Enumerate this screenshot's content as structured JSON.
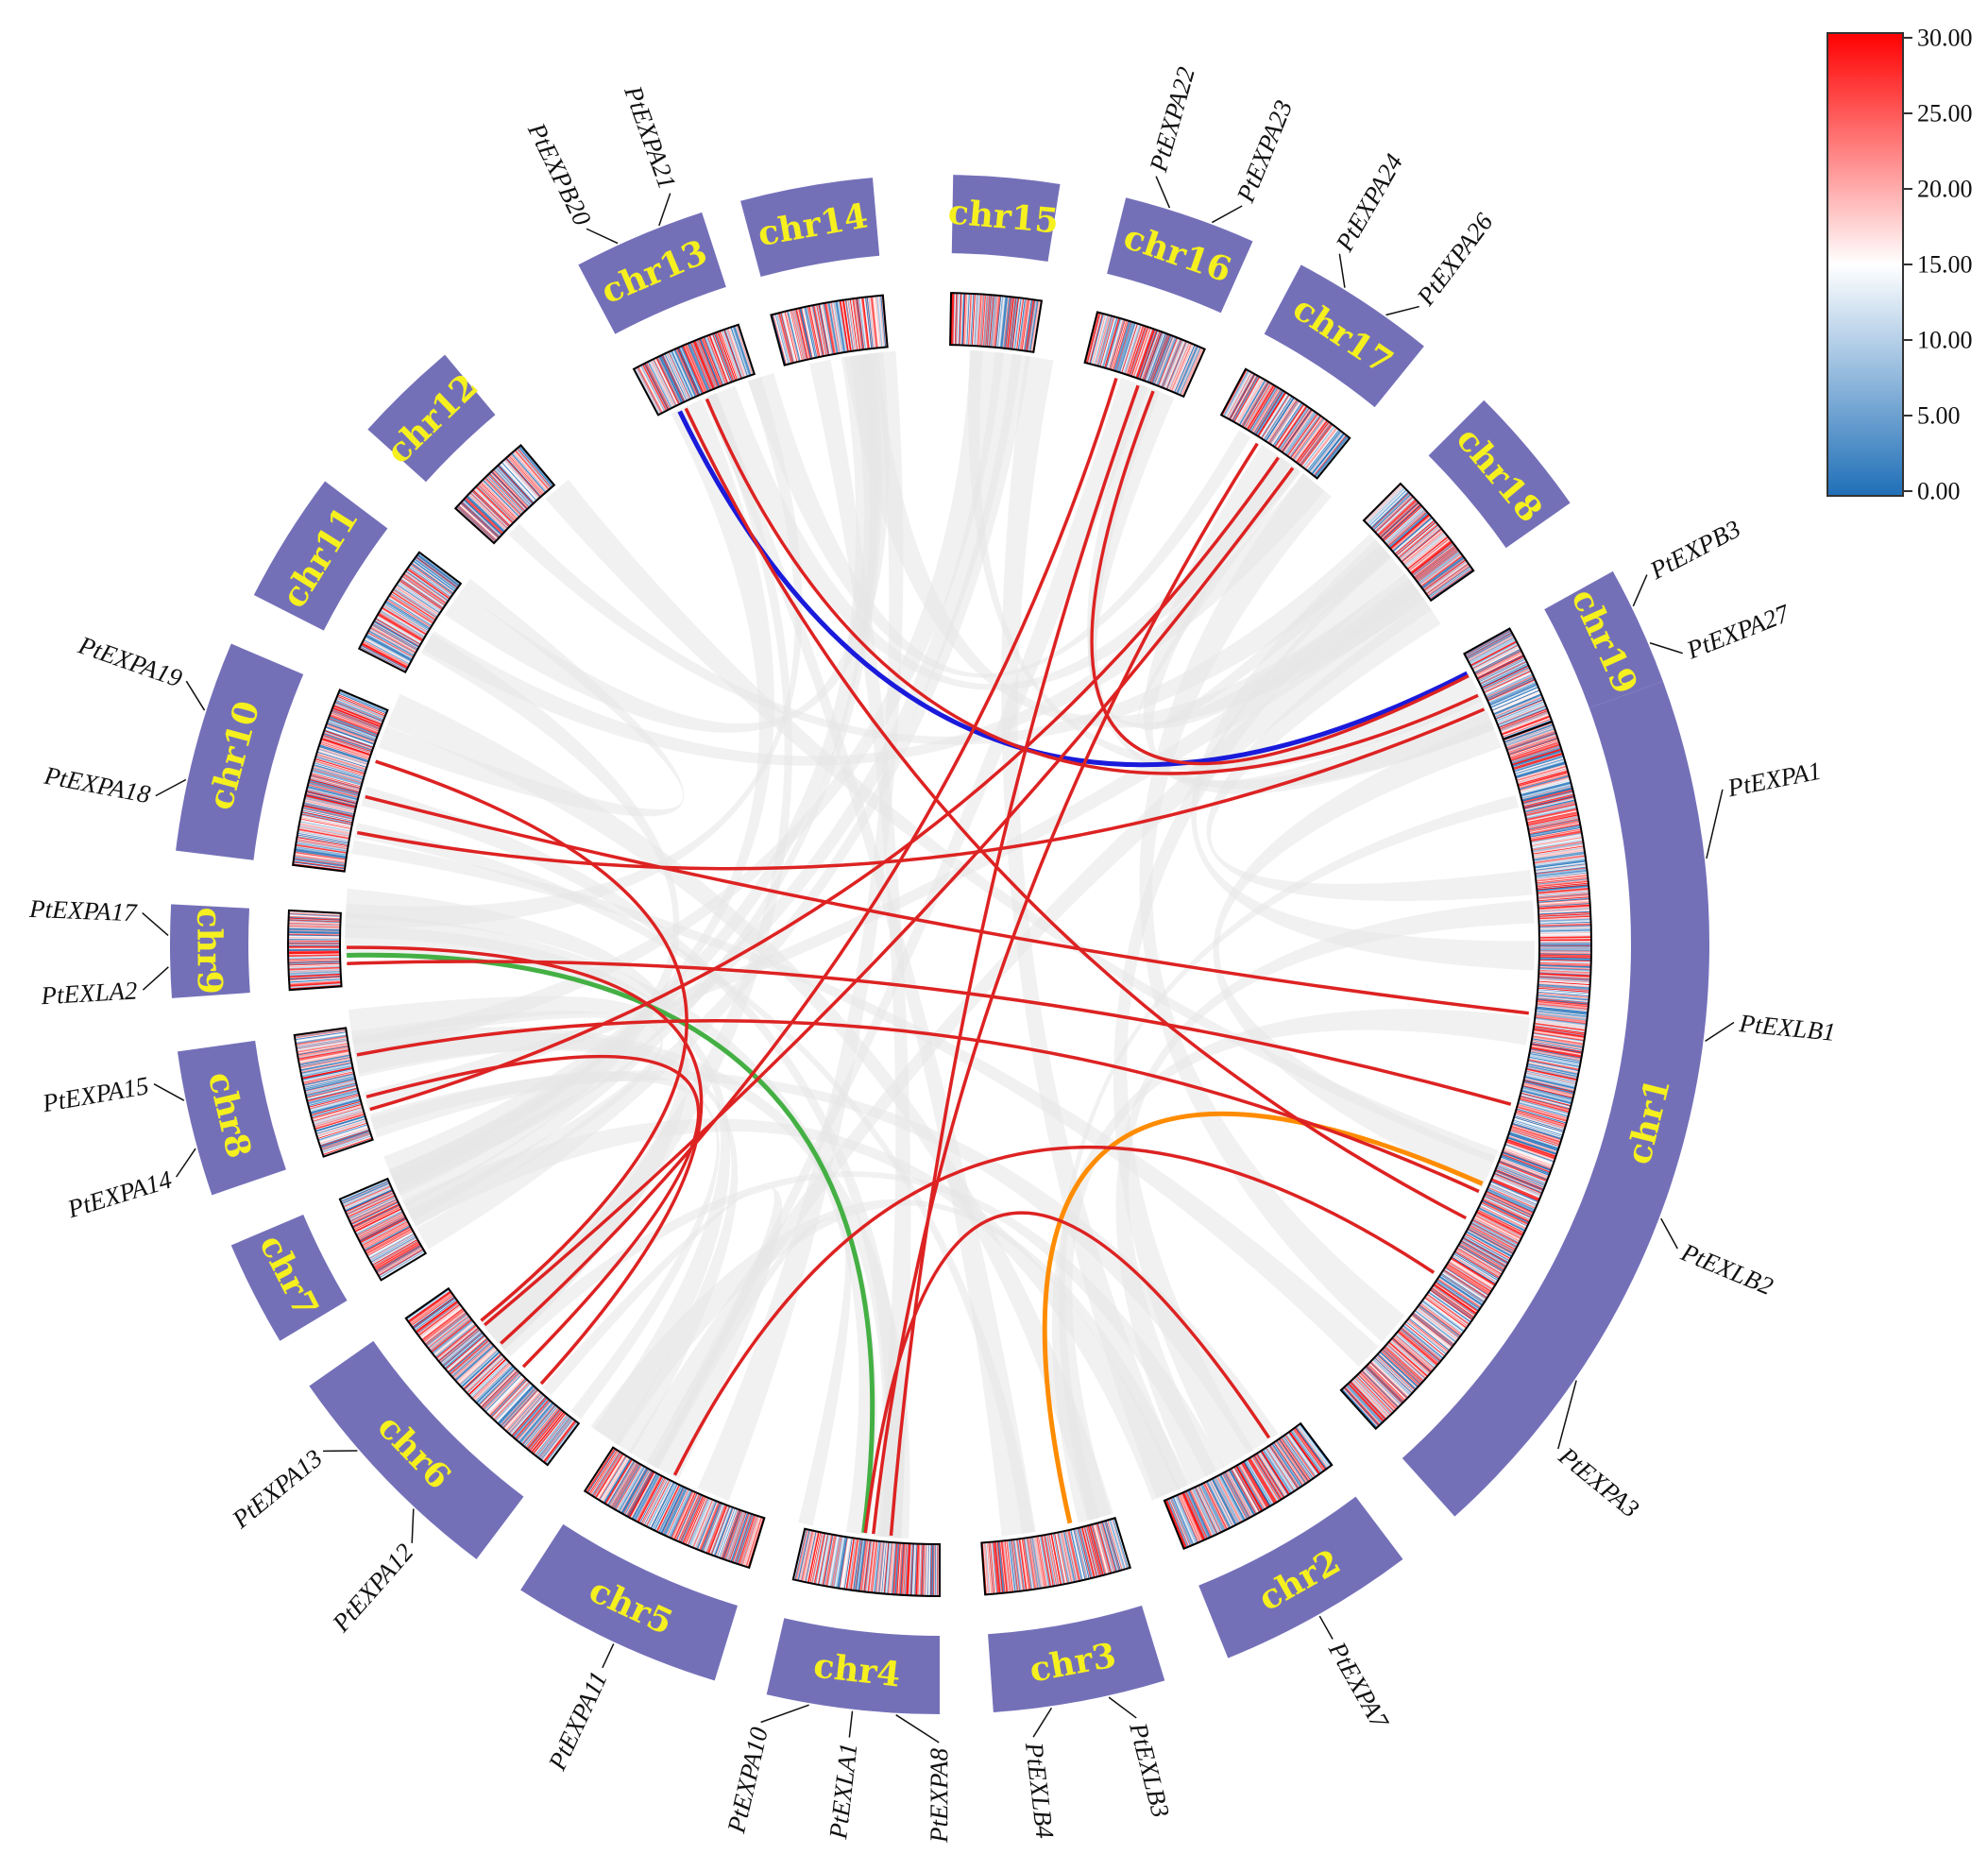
{
  "diagram": {
    "type": "circos",
    "description_free": true,
    "chromosomes": [
      {
        "id": "chr1",
        "label": "chr1"
      },
      {
        "id": "chr2",
        "label": "chr2"
      },
      {
        "id": "chr3",
        "label": "chr3"
      },
      {
        "id": "chr4",
        "label": "chr4"
      },
      {
        "id": "chr5",
        "label": "chr5"
      },
      {
        "id": "chr6",
        "label": "chr6"
      },
      {
        "id": "chr7",
        "label": "chr7"
      },
      {
        "id": "chr8",
        "label": "chr8"
      },
      {
        "id": "chr9",
        "label": "chr9"
      },
      {
        "id": "chr10",
        "label": "chr10"
      },
      {
        "id": "chr11",
        "label": "chr11"
      },
      {
        "id": "chr12",
        "label": "chr12"
      },
      {
        "id": "chr13",
        "label": "chr13"
      },
      {
        "id": "chr14",
        "label": "chr14"
      },
      {
        "id": "chr15",
        "label": "chr15"
      },
      {
        "id": "chr16",
        "label": "chr16"
      },
      {
        "id": "chr17",
        "label": "chr17"
      },
      {
        "id": "chr18",
        "label": "chr18"
      },
      {
        "id": "chr19",
        "label": "chr19"
      }
    ],
    "genes": [
      {
        "name": "PtEXPA1",
        "chr": "chr1"
      },
      {
        "name": "PtEXLB1",
        "chr": "chr1"
      },
      {
        "name": "PtEXLB2",
        "chr": "chr1"
      },
      {
        "name": "PtEXPA3",
        "chr": "chr1"
      },
      {
        "name": "PtEXPA7",
        "chr": "chr2"
      },
      {
        "name": "PtEXLB3",
        "chr": "chr3"
      },
      {
        "name": "PtEXLB4",
        "chr": "chr3"
      },
      {
        "name": "PtEXPA8",
        "chr": "chr4"
      },
      {
        "name": "PtEXLA1",
        "chr": "chr4"
      },
      {
        "name": "PtEXPA10",
        "chr": "chr4"
      },
      {
        "name": "PtEXPA11",
        "chr": "chr5"
      },
      {
        "name": "PtEXPA12",
        "chr": "chr6"
      },
      {
        "name": "PtEXPA13",
        "chr": "chr6"
      },
      {
        "name": "PtEXPA14",
        "chr": "chr8"
      },
      {
        "name": "PtEXPA15",
        "chr": "chr8"
      },
      {
        "name": "PtEXLA2",
        "chr": "chr9"
      },
      {
        "name": "PtEXPA17",
        "chr": "chr9"
      },
      {
        "name": "PtEXPA18",
        "chr": "chr10"
      },
      {
        "name": "PtEXPA19",
        "chr": "chr10"
      },
      {
        "name": "PtEXPB20",
        "chr": "chr13"
      },
      {
        "name": "PtEXPA21",
        "chr": "chr13"
      },
      {
        "name": "PtEXPA22",
        "chr": "chr16"
      },
      {
        "name": "PtEXPA23",
        "chr": "chr16"
      },
      {
        "name": "PtEXPA24",
        "chr": "chr17"
      },
      {
        "name": "PtEXPA26",
        "chr": "chr17"
      },
      {
        "name": "PtEXPB3",
        "chr": "chr19"
      },
      {
        "name": "PtEXPA27",
        "chr": "chr19"
      }
    ],
    "links": [
      {
        "from": "chr13",
        "to": "chr19",
        "color": "#1a1adb"
      },
      {
        "from": "chr9",
        "to": "chr4",
        "color": "#44b044"
      },
      {
        "from": "chr1",
        "to": "chr3",
        "color": "#ff8c00"
      },
      {
        "from": "chr13",
        "to": "chr1",
        "color": "#dd2222"
      },
      {
        "from": "chr13",
        "to": "chr19",
        "color": "#dd2222"
      },
      {
        "from": "chr16",
        "to": "chr19",
        "color": "#dd2222"
      },
      {
        "from": "chr16",
        "to": "chr6",
        "color": "#dd2222"
      },
      {
        "from": "chr16",
        "to": "chr4",
        "color": "#dd2222"
      },
      {
        "from": "chr17",
        "to": "chr6",
        "color": "#dd2222"
      },
      {
        "from": "chr17",
        "to": "chr4",
        "color": "#dd2222"
      },
      {
        "from": "chr17",
        "to": "chr8",
        "color": "#dd2222"
      },
      {
        "from": "chr10",
        "to": "chr19",
        "color": "#dd2222"
      },
      {
        "from": "chr10",
        "to": "chr1",
        "color": "#dd2222"
      },
      {
        "from": "chr10",
        "to": "chr6",
        "color": "#dd2222"
      },
      {
        "from": "chr9",
        "to": "chr1",
        "color": "#dd2222"
      },
      {
        "from": "chr9",
        "to": "chr6",
        "color": "#dd2222"
      },
      {
        "from": "chr8",
        "to": "chr1",
        "color": "#dd2222"
      },
      {
        "from": "chr8",
        "to": "chr6",
        "color": "#dd2222"
      },
      {
        "from": "chr5",
        "to": "chr1",
        "color": "#dd2222"
      },
      {
        "from": "chr2",
        "to": "chr4",
        "color": "#dd2222"
      }
    ],
    "legend": {
      "ticks": [
        "30.00",
        "25.00",
        "20.00",
        "15.00",
        "10.00",
        "5.00",
        "0.00"
      ],
      "colors": {
        "high": "#ff0000",
        "mid": "#ffffff",
        "low": "#1f6fb8"
      }
    },
    "colors": {
      "chromosome_block": "#7470b8",
      "chromosome_label": "#f5f01e",
      "synteny_background": "#e6e6e6"
    }
  }
}
